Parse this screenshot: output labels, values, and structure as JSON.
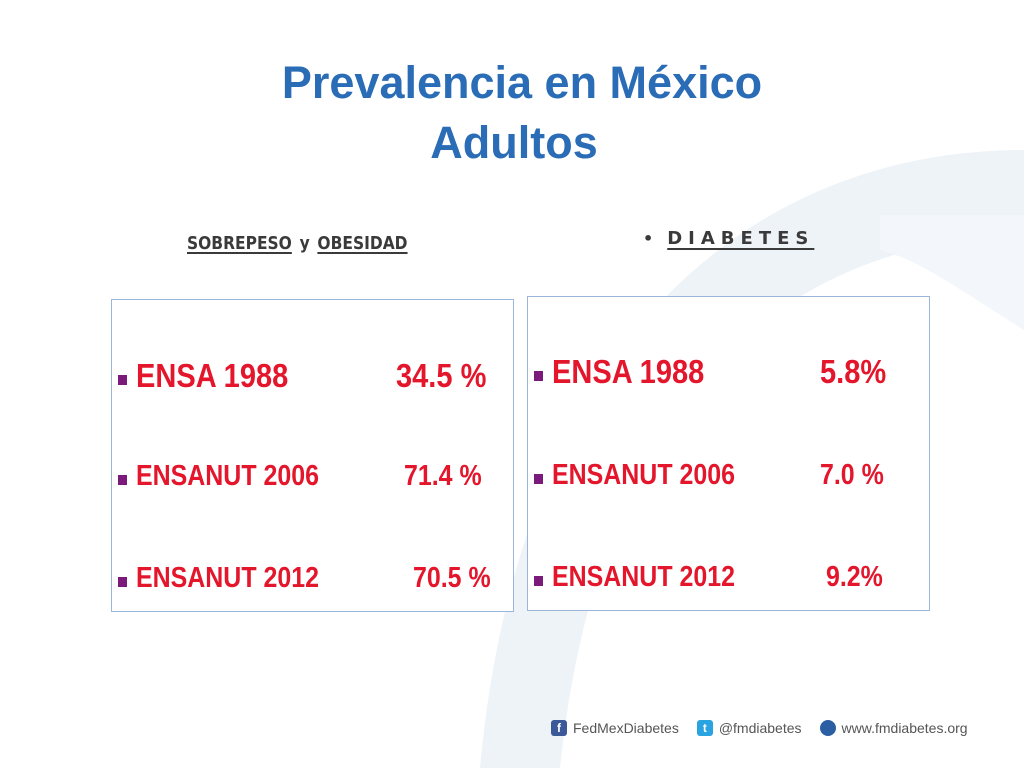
{
  "title": {
    "line1": "Prevalencia en México",
    "line2": "Adultos"
  },
  "sobrepeso": {
    "heading_a": "SOBREPESO",
    "heading_y": "y",
    "heading_b": "OBESIDAD",
    "rows": [
      {
        "name": "ENSA 1988",
        "value": "34.5 %"
      },
      {
        "name": "ENSANUT 2006",
        "value": "71.4 %"
      },
      {
        "name": "ENSANUT 2012",
        "value": "70.5 %"
      }
    ]
  },
  "diabetes": {
    "bullet": "•",
    "heading": "DIABETES",
    "rows": [
      {
        "name": "ENSA 1988",
        "value": "5.8%"
      },
      {
        "name": "ENSANUT 2006",
        "value": "7.0 %"
      },
      {
        "name": "ENSANUT 2012",
        "value": "9.2%"
      }
    ]
  },
  "footer": {
    "facebook_icon": "facebook-icon",
    "facebook": "FedMexDiabetes",
    "twitter_icon": "twitter-icon",
    "twitter": "@fmdiabetes",
    "web_icon": "globe-icon",
    "web": "www.fmdiabetes.org"
  },
  "colors": {
    "title": "#2a6cb5",
    "values": "#e3162c",
    "marker": "#7a1a7a",
    "panel_border": "#9bb6d8"
  }
}
